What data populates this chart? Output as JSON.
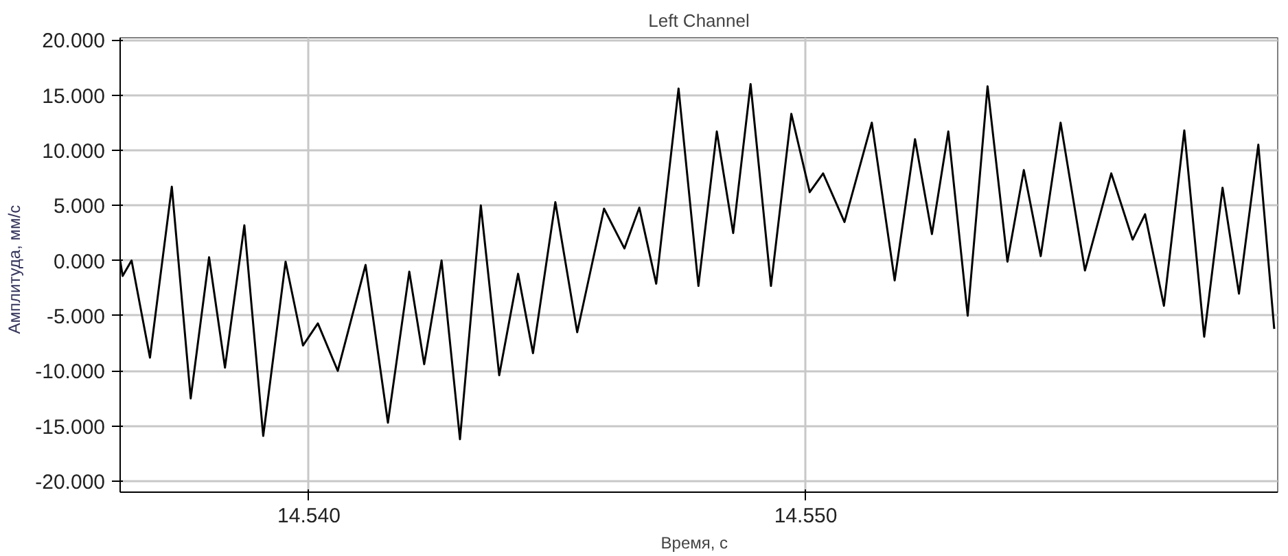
{
  "chart_data": {
    "type": "line",
    "title": "Left Channel",
    "xlabel": "Время,   с",
    "ylabel": "Амплитуда,   мм/с",
    "x": [
      14.5362,
      14.53625,
      14.53643,
      14.5368,
      14.53724,
      14.53762,
      14.53799,
      14.53831,
      14.5387,
      14.53908,
      14.53953,
      14.53988,
      14.54018,
      14.54058,
      14.54114,
      14.54159,
      14.54202,
      14.54232,
      14.54267,
      14.54304,
      14.54346,
      14.54383,
      14.54421,
      14.54451,
      14.54496,
      14.5454,
      14.54594,
      14.54635,
      14.54665,
      14.54699,
      14.54744,
      14.54784,
      14.54821,
      14.54854,
      14.54889,
      14.5493,
      14.54971,
      14.55008,
      14.55035,
      14.55078,
      14.55133,
      14.55179,
      14.5522,
      14.55254,
      14.55287,
      14.55326,
      14.55366,
      14.55406,
      14.55439,
      14.55473,
      14.55513,
      14.55562,
      14.55615,
      14.55658,
      14.55683,
      14.55721,
      14.55762,
      14.55802,
      14.55839,
      14.55872,
      14.55911,
      14.55943
    ],
    "series": [
      {
        "color": "#000000",
        "values": [
          0,
          -1.4,
          0,
          -8.8,
          6.7,
          -12.5,
          0.3,
          -9.7,
          3.2,
          -15.9,
          -0.1,
          -7.7,
          -5.7,
          -10,
          -0.4,
          -14.7,
          -1,
          -9.4,
          0,
          -16.2,
          5,
          -10.4,
          -1.2,
          -8.4,
          5.3,
          -6.5,
          4.7,
          1.1,
          4.8,
          -2.1,
          15.6,
          -2.3,
          11.7,
          2.5,
          16,
          -2.3,
          13.3,
          6.2,
          7.9,
          3.5,
          12.5,
          -1.8,
          11,
          2.4,
          11.7,
          -5,
          15.8,
          -0.1,
          8.2,
          0.4,
          12.5,
          -0.9,
          7.9,
          1.9,
          4.2,
          -4.1,
          11.8,
          -6.9,
          6.6,
          -3,
          10.5,
          -6.2
        ]
      }
    ],
    "xlim": [
      14.5362,
      14.5595
    ],
    "ylim": [
      -21,
      20.2
    ],
    "xticks": [
      {
        "value": 14.54,
        "label": "14.540"
      },
      {
        "value": 14.55,
        "label": "14.550"
      }
    ],
    "yticks": [
      {
        "value": -20,
        "label": "-20.000"
      },
      {
        "value": -15,
        "label": "-15.000"
      },
      {
        "value": -10,
        "label": "-10.000"
      },
      {
        "value": -5,
        "label": "-5.000"
      },
      {
        "value": 0,
        "label": "0.000"
      },
      {
        "value": 5,
        "label": "5.000"
      },
      {
        "value": 10,
        "label": "10.000"
      },
      {
        "value": 15,
        "label": "15.000"
      },
      {
        "value": 20,
        "label": "20.000"
      }
    ],
    "grid": true,
    "marker": "none",
    "line_style": "solid"
  }
}
